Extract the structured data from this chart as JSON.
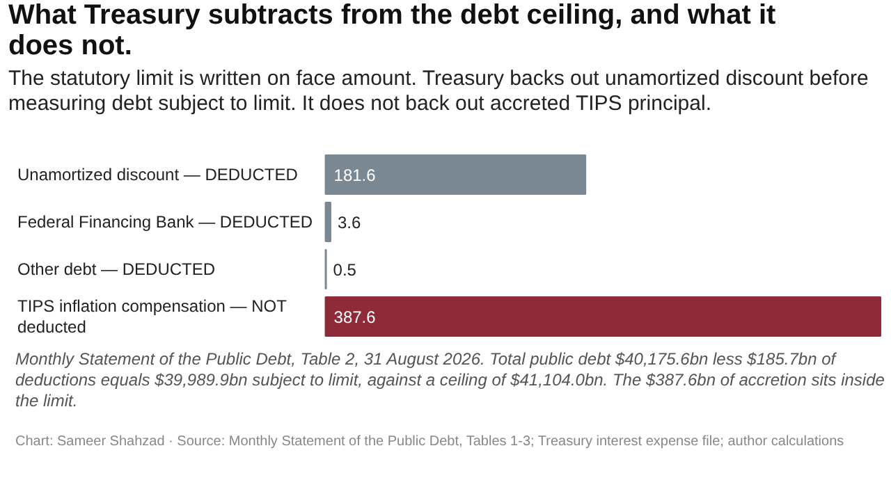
{
  "chart_data": {
    "type": "bar",
    "orientation": "horizontal",
    "title": "What Treasury subtracts from the debt ceiling, and what it does not.",
    "subtitle": "The statutory limit is written on face amount. Treasury backs out unamortized discount before measuring debt subject to limit. It does not back out accreted TIPS principal.",
    "categories": [
      "Unamortized discount — DEDUCTED",
      "Federal Financing Bank — DEDUCTED",
      "Other debt — DEDUCTED",
      "TIPS inflation compensation — NOT deducted"
    ],
    "values": [
      181.6,
      3.6,
      0.5,
      387.6
    ],
    "colors": [
      "#7a8893",
      "#7a8893",
      "#7a8893",
      "#8f2a38"
    ],
    "data_labels": true,
    "annotations": [
      "Monthly Statement of the Public Debt, Table 2, 31 August 2026. Total public debt $40,175.6bn less $185.7bn of deductions equals $39,989.9bn subject to limit, against a ceiling of $41,104.0bn. The $387.6bn of accretion sits inside the limit.",
      "Chart: Sameer Shahzad · Source: Monthly Statement of the Public Debt, Tables 1-3; Treasury interest expense file; author calculations"
    ]
  }
}
